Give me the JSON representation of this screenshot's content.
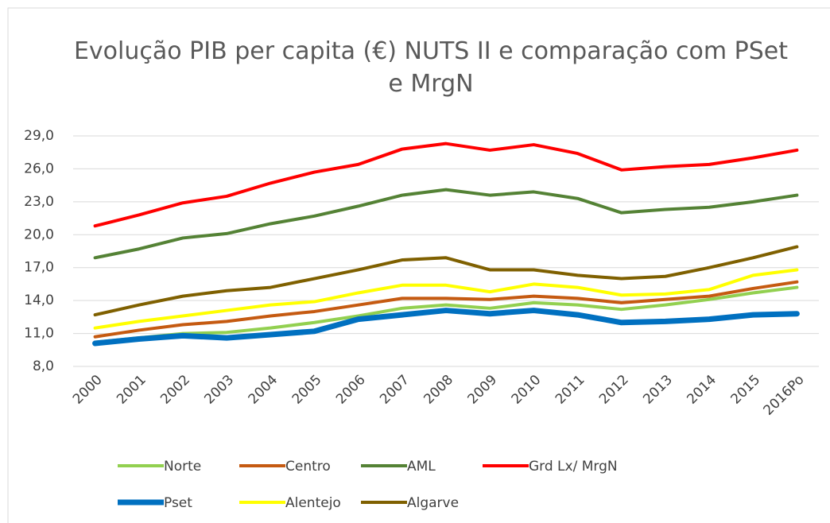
{
  "chart_data": {
    "type": "line",
    "title": "Evolução PIB per capita (€) NUTS II e comparação com PSet e MrgN",
    "categories": [
      "2000",
      "2001",
      "2002",
      "2003",
      "2004",
      "2005",
      "2006",
      "2007",
      "2008",
      "2009",
      "2010",
      "2011",
      "2012",
      "2013",
      "2014",
      "2015",
      "2016Po"
    ],
    "ylim": [
      8,
      29
    ],
    "yticks": [
      {
        "value": 8,
        "label": "8,0"
      },
      {
        "value": 11,
        "label": "11,0"
      },
      {
        "value": 14,
        "label": "14,0"
      },
      {
        "value": 17,
        "label": "17,0"
      },
      {
        "value": 20,
        "label": "20,0"
      },
      {
        "value": 23,
        "label": "23,0"
      },
      {
        "value": 26,
        "label": "26,0"
      },
      {
        "value": 29,
        "label": "29,0"
      }
    ],
    "grid": true,
    "legend": "bottom",
    "series": [
      {
        "name": "Norte",
        "color": "#92d050",
        "line_width": 4,
        "values": [
          10.2,
          10.6,
          11.0,
          11.1,
          11.5,
          12.0,
          12.6,
          13.3,
          13.6,
          13.3,
          13.8,
          13.6,
          13.2,
          13.6,
          14.1,
          14.7,
          15.2
        ]
      },
      {
        "name": "Centro",
        "color": "#c55a11",
        "line_width": 4,
        "values": [
          10.7,
          11.3,
          11.8,
          12.1,
          12.6,
          13.0,
          13.6,
          14.2,
          14.2,
          14.1,
          14.4,
          14.2,
          13.8,
          14.1,
          14.4,
          15.1,
          15.7
        ]
      },
      {
        "name": "AML",
        "color": "#548235",
        "line_width": 4,
        "values": [
          17.9,
          18.7,
          19.7,
          20.1,
          21.0,
          21.7,
          22.6,
          23.6,
          24.1,
          23.6,
          23.9,
          23.3,
          22.0,
          22.3,
          22.5,
          23.0,
          23.6
        ]
      },
      {
        "name": "Grd Lx/ MrgN",
        "color": "#ff0000",
        "line_width": 4,
        "values": [
          20.8,
          21.8,
          22.9,
          23.5,
          24.7,
          25.7,
          26.4,
          27.8,
          28.3,
          27.7,
          28.2,
          27.4,
          25.9,
          26.2,
          26.4,
          27.0,
          27.7
        ]
      },
      {
        "name": "Pset",
        "color": "#0070c0",
        "line_width": 7,
        "values": [
          10.1,
          10.5,
          10.8,
          10.6,
          10.9,
          11.2,
          12.3,
          12.7,
          13.1,
          12.8,
          13.1,
          12.7,
          12.0,
          12.1,
          12.3,
          12.7,
          12.8
        ]
      },
      {
        "name": "Alentejo",
        "color": "#ffff00",
        "line_width": 4,
        "values": [
          11.5,
          12.1,
          12.6,
          13.1,
          13.6,
          13.9,
          14.7,
          15.4,
          15.4,
          14.8,
          15.5,
          15.2,
          14.5,
          14.6,
          15.0,
          16.3,
          16.8
        ]
      },
      {
        "name": "Algarve",
        "color": "#7f6000",
        "line_width": 4,
        "values": [
          12.7,
          13.6,
          14.4,
          14.9,
          15.2,
          16.0,
          16.8,
          17.7,
          17.9,
          16.8,
          16.8,
          16.3,
          16.0,
          16.2,
          17.0,
          17.9,
          18.9
        ]
      }
    ]
  }
}
